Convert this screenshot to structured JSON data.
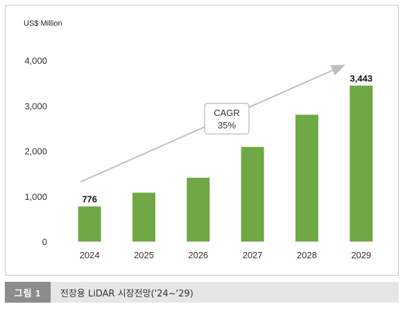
{
  "chart_data": {
    "type": "bar",
    "unit_label": "US$ Million",
    "categories": [
      "2024",
      "2025",
      "2026",
      "2027",
      "2028",
      "2029"
    ],
    "values": [
      776,
      1080,
      1410,
      2090,
      2800,
      3443
    ],
    "data_labels": [
      {
        "index": 0,
        "text": "776"
      },
      {
        "index": 5,
        "text": "3,443"
      }
    ],
    "ylim": [
      0,
      4000
    ],
    "yticks": [
      0,
      1000,
      2000,
      3000,
      4000
    ],
    "ytick_labels": [
      "0",
      "1,000",
      "2,000",
      "3,000",
      "4,000"
    ],
    "bar_color": "#70a845",
    "grid": false,
    "annotation": {
      "line1": "CAGR",
      "line2": "35%"
    },
    "trend_arrow_color": "#bfbfbf"
  },
  "caption": {
    "badge": "그림 1",
    "text": "전장용 LiDAR 시장전망('24~'29)"
  }
}
